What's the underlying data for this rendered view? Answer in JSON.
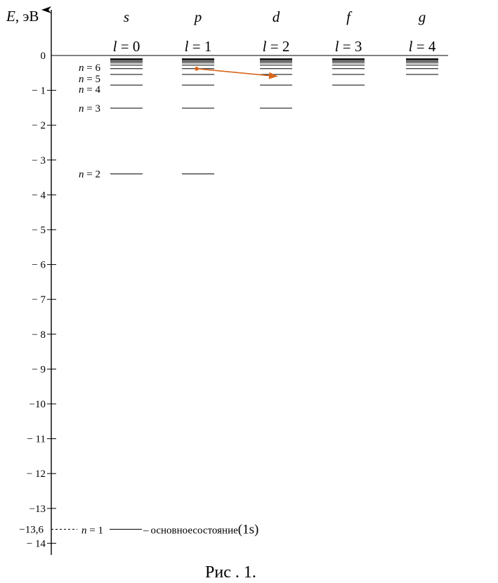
{
  "axis": {
    "label_italic": "E",
    "label_rest": ", эВ",
    "ticks": [
      {
        "value": 0,
        "text": "0"
      },
      {
        "value": -1,
        "text": "− 1"
      },
      {
        "value": -2,
        "text": "− 2"
      },
      {
        "value": -3,
        "text": "− 3"
      },
      {
        "value": -4,
        "text": "− 4"
      },
      {
        "value": -5,
        "text": "− 5"
      },
      {
        "value": -6,
        "text": "− 6"
      },
      {
        "value": -7,
        "text": "− 7"
      },
      {
        "value": -8,
        "text": "− 8"
      },
      {
        "value": -9,
        "text": "− 9"
      },
      {
        "value": -10,
        "text": "−10"
      },
      {
        "value": -11,
        "text": "− 11"
      },
      {
        "value": -12,
        "text": "− 12"
      },
      {
        "value": -13,
        "text": "−13"
      },
      {
        "value": -14,
        "text": "− 14"
      }
    ],
    "ground_value": -13.6,
    "ground_text": "−13,6"
  },
  "columns": [
    {
      "letter": "s",
      "l_value": "0",
      "min_n": 1
    },
    {
      "letter": "p",
      "l_value": "1",
      "min_n": 2
    },
    {
      "letter": "d",
      "l_value": "2",
      "min_n": 3
    },
    {
      "letter": "f",
      "l_value": "3",
      "min_n": 4
    },
    {
      "letter": "g",
      "l_value": "4",
      "min_n": 5
    }
  ],
  "l_symbol": "l",
  "l_equals": " = ",
  "max_n_drawn": 12,
  "n_labels": [
    {
      "n": 6,
      "italic": "n",
      "rest": " = 6"
    },
    {
      "n": 5,
      "italic": "n",
      "rest": " = 5"
    },
    {
      "n": 4,
      "italic": "n",
      "rest": " = 4"
    },
    {
      "n": 3,
      "italic": "n",
      "rest": " = 3"
    },
    {
      "n": 2,
      "italic": "n",
      "rest": " = 2"
    },
    {
      "n": 1,
      "italic": "n",
      "rest": " = 1"
    }
  ],
  "ground_state_text": "основноесостояние",
  "ground_state_paren": "(1s)",
  "ground_dash": "–",
  "transition": {
    "from_col": 1,
    "from_energy": -0.38,
    "to_col": 2,
    "to_energy": -0.6,
    "color": "#d8661a"
  },
  "caption": "Рис . 1."
}
